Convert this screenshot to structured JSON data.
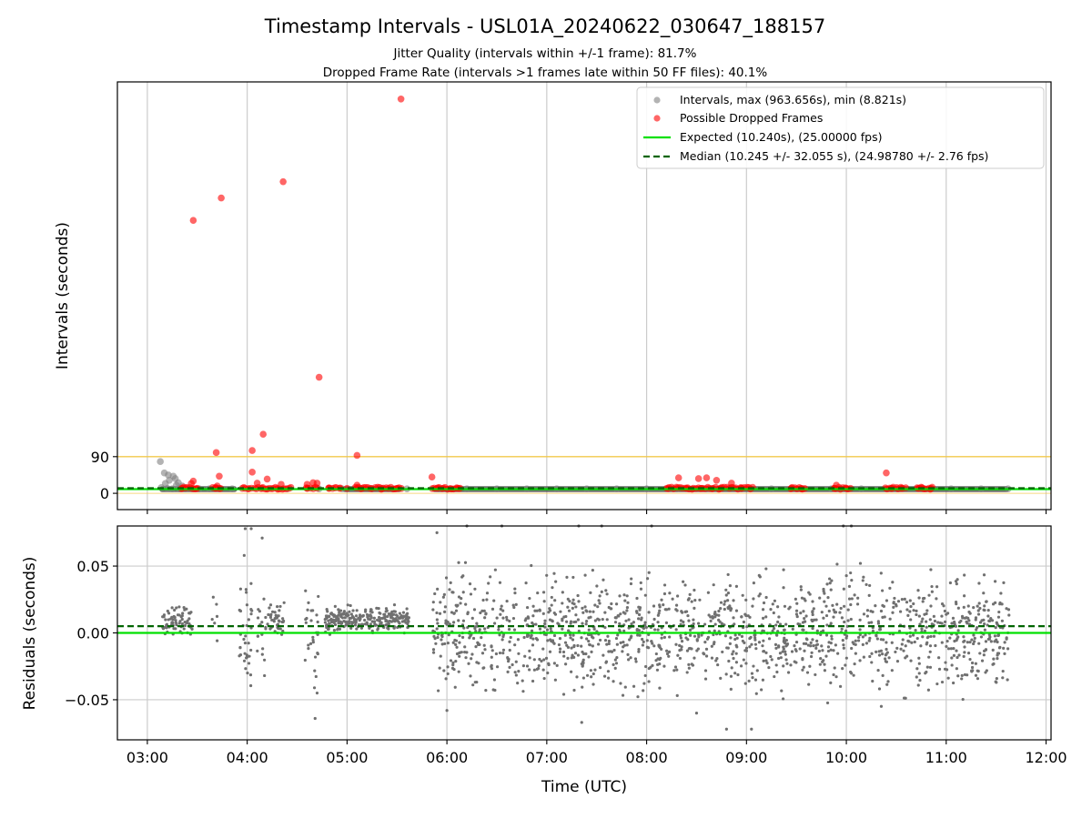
{
  "figure": {
    "title": "Timestamp Intervals - USL01A_20240622_030647_188157",
    "subtitle_1": "Jitter Quality (intervals within +/-1 frame): 81.7%",
    "subtitle_2": "Dropped Frame Rate (intervals >1 frames late within 50 FF files): 40.1%"
  },
  "colors": {
    "intervals": "#808080",
    "dropped": "#ff0000",
    "expected": "#00e000",
    "median": "#006400",
    "threshold": "#f2c94c",
    "residuals": "#707070",
    "grid": "#cccccc"
  },
  "chart_data": [
    {
      "type": "scatter",
      "panel": "top",
      "xlabel": "",
      "ylabel": "Intervals (seconds)",
      "xlim": [
        2.7,
        12.05
      ],
      "ylim": [
        -40,
        1010
      ],
      "ytick_values": [
        0,
        90
      ],
      "ytick_labels": [
        "0",
        "90"
      ],
      "xticks": [
        3,
        4,
        5,
        6,
        7,
        8,
        9,
        10,
        11,
        12
      ],
      "grid": "x",
      "legend_position": "top-right",
      "legend": [
        "Intervals, max (963.656s), min (8.821s)",
        "Possible Dropped Frames",
        "Expected (10.240s), (25.00000 fps)",
        "Median (10.245 +/- 32.055 s), (24.98780 +/- 2.76 fps)"
      ],
      "hlines": {
        "threshold": 90,
        "expected": 10.24,
        "median": 10.245
      },
      "normal_points": [
        [
          3.13,
          78
        ],
        [
          3.17,
          50
        ],
        [
          3.21,
          45
        ],
        [
          3.26,
          42
        ],
        [
          3.28,
          36
        ],
        [
          3.31,
          26
        ],
        [
          3.35,
          18
        ],
        [
          3.22,
          32
        ],
        [
          3.18,
          24
        ],
        [
          3.29,
          20
        ],
        [
          3.14,
          14
        ],
        [
          3.2,
          12
        ],
        [
          3.25,
          11
        ],
        [
          3.32,
          11
        ],
        [
          3.38,
          11
        ],
        [
          3.45,
          11
        ],
        [
          3.52,
          11
        ],
        [
          3.62,
          11
        ],
        [
          3.72,
          11
        ],
        [
          3.85,
          11
        ],
        [
          4.2,
          11
        ],
        [
          4.4,
          11
        ],
        [
          4.72,
          11
        ],
        [
          4.95,
          11
        ],
        [
          5.25,
          11
        ],
        [
          5.6,
          11
        ],
        [
          5.92,
          11
        ],
        [
          6.2,
          11
        ],
        [
          6.5,
          11
        ],
        [
          6.8,
          11
        ],
        [
          7.1,
          11
        ],
        [
          7.4,
          11
        ],
        [
          7.7,
          11
        ],
        [
          8.0,
          11
        ],
        [
          8.3,
          11
        ],
        [
          8.6,
          11
        ],
        [
          8.95,
          11
        ],
        [
          9.25,
          11
        ],
        [
          9.55,
          11
        ],
        [
          9.85,
          11
        ],
        [
          10.15,
          11
        ],
        [
          10.45,
          11
        ],
        [
          10.75,
          11
        ],
        [
          11.05,
          11
        ],
        [
          11.35,
          11
        ],
        [
          11.62,
          11
        ]
      ],
      "normal_band_x": [
        [
          3.12,
          3.9
        ],
        [
          4.95,
          5.55
        ],
        [
          5.85,
          11.63
        ]
      ],
      "dropped_points": [
        [
          3.46,
          670
        ],
        [
          3.74,
          725
        ],
        [
          4.36,
          765
        ],
        [
          4.72,
          285
        ],
        [
          5.54,
          968
        ],
        [
          4.16,
          145
        ],
        [
          4.05,
          105
        ],
        [
          3.69,
          100
        ],
        [
          5.1,
          93
        ],
        [
          3.46,
          30
        ],
        [
          3.44,
          24
        ],
        [
          3.7,
          18
        ],
        [
          3.72,
          42
        ],
        [
          4.05,
          52
        ],
        [
          4.1,
          25
        ],
        [
          4.2,
          35
        ],
        [
          4.34,
          22
        ],
        [
          4.6,
          22
        ],
        [
          4.66,
          26
        ],
        [
          4.7,
          25
        ],
        [
          5.1,
          20
        ],
        [
          5.85,
          40
        ],
        [
          8.32,
          38
        ],
        [
          8.52,
          36
        ],
        [
          8.6,
          38
        ],
        [
          8.7,
          32
        ],
        [
          8.85,
          25
        ],
        [
          9.9,
          20
        ],
        [
          10.4,
          50
        ],
        [
          10.75,
          15
        ],
        [
          3.35,
          12
        ],
        [
          3.5,
          12
        ],
        [
          3.68,
          12
        ],
        [
          3.95,
          12
        ],
        [
          4.15,
          12
        ],
        [
          4.3,
          12
        ],
        [
          4.6,
          12
        ],
        [
          4.82,
          12
        ],
        [
          5.0,
          12
        ],
        [
          5.15,
          12
        ],
        [
          5.35,
          12
        ],
        [
          5.5,
          12
        ],
        [
          5.9,
          12
        ],
        [
          6.1,
          12
        ],
        [
          8.2,
          12
        ],
        [
          8.4,
          12
        ],
        [
          8.55,
          12
        ],
        [
          8.75,
          12
        ],
        [
          8.95,
          12
        ],
        [
          9.45,
          12
        ],
        [
          9.55,
          12
        ],
        [
          9.88,
          12
        ],
        [
          10.0,
          12
        ],
        [
          10.45,
          12
        ],
        [
          10.55,
          12
        ],
        [
          10.72,
          12
        ],
        [
          10.85,
          12
        ]
      ],
      "dropped_clusters_x": [
        [
          3.33,
          3.5
        ],
        [
          3.65,
          3.75
        ],
        [
          3.95,
          4.45
        ],
        [
          4.58,
          4.72
        ],
        [
          4.8,
          4.95
        ],
        [
          5.07,
          5.56
        ],
        [
          5.85,
          6.15
        ],
        [
          8.2,
          9.08
        ],
        [
          9.43,
          9.6
        ],
        [
          9.87,
          10.05
        ],
        [
          10.38,
          10.6
        ],
        [
          10.7,
          10.88
        ]
      ]
    },
    {
      "type": "scatter",
      "panel": "bottom",
      "xlabel": "Time (UTC)",
      "ylabel": "Residuals (seconds)",
      "xlim": [
        2.7,
        12.05
      ],
      "ylim": [
        -0.08,
        0.08
      ],
      "ytick_values": [
        0.05,
        0.0,
        -0.05
      ],
      "ytick_labels": [
        "0.05",
        "0.00",
        "−0.05"
      ],
      "xticks": [
        3,
        4,
        5,
        6,
        7,
        8,
        9,
        10,
        11,
        12
      ],
      "xtick_labels": [
        "03:00",
        "04:00",
        "05:00",
        "06:00",
        "07:00",
        "08:00",
        "09:00",
        "10:00",
        "11:00",
        "12:00"
      ],
      "grid": "both",
      "hlines": {
        "expected": 0.0,
        "median": 0.005
      },
      "residual_clusters": [
        {
          "x": [
            3.15,
            3.45
          ],
          "center": 0.009,
          "spread": 0.008,
          "n": 70
        },
        {
          "x": [
            3.6,
            3.74
          ],
          "center": 0.0,
          "spread": 0.02,
          "n": 6
        },
        {
          "x": [
            3.92,
            4.05
          ],
          "center": 0.0,
          "spread": 0.03,
          "n": 35
        },
        {
          "x": [
            4.1,
            4.2
          ],
          "center": 0.005,
          "spread": 0.02,
          "n": 18
        },
        {
          "x": [
            4.2,
            4.37
          ],
          "center": 0.01,
          "spread": 0.008,
          "n": 40
        },
        {
          "x": [
            4.58,
            4.72
          ],
          "center": 0.0,
          "spread": 0.03,
          "n": 28
        },
        {
          "x": [
            4.78,
            5.62
          ],
          "center": 0.01,
          "spread": 0.007,
          "n": 260
        },
        {
          "x": [
            5.85,
            11.63
          ],
          "center": 0.0,
          "spread": 0.03,
          "n": 1500
        }
      ],
      "residual_outliers": [
        [
          3.98,
          0.078
        ],
        [
          4.04,
          0.078
        ],
        [
          4.15,
          0.071
        ],
        [
          3.97,
          0.058
        ],
        [
          4.68,
          -0.064
        ],
        [
          4.7,
          -0.045
        ],
        [
          6.2,
          0.08
        ],
        [
          6.55,
          0.08
        ],
        [
          7.32,
          0.08
        ],
        [
          7.55,
          0.08
        ],
        [
          8.05,
          0.08
        ],
        [
          9.97,
          0.08
        ],
        [
          10.05,
          0.08
        ],
        [
          8.8,
          -0.072
        ],
        [
          9.05,
          -0.072
        ],
        [
          7.35,
          -0.067
        ],
        [
          8.5,
          -0.06
        ],
        [
          6.0,
          -0.058
        ],
        [
          5.9,
          0.075
        ],
        [
          10.35,
          -0.055
        ]
      ]
    }
  ]
}
